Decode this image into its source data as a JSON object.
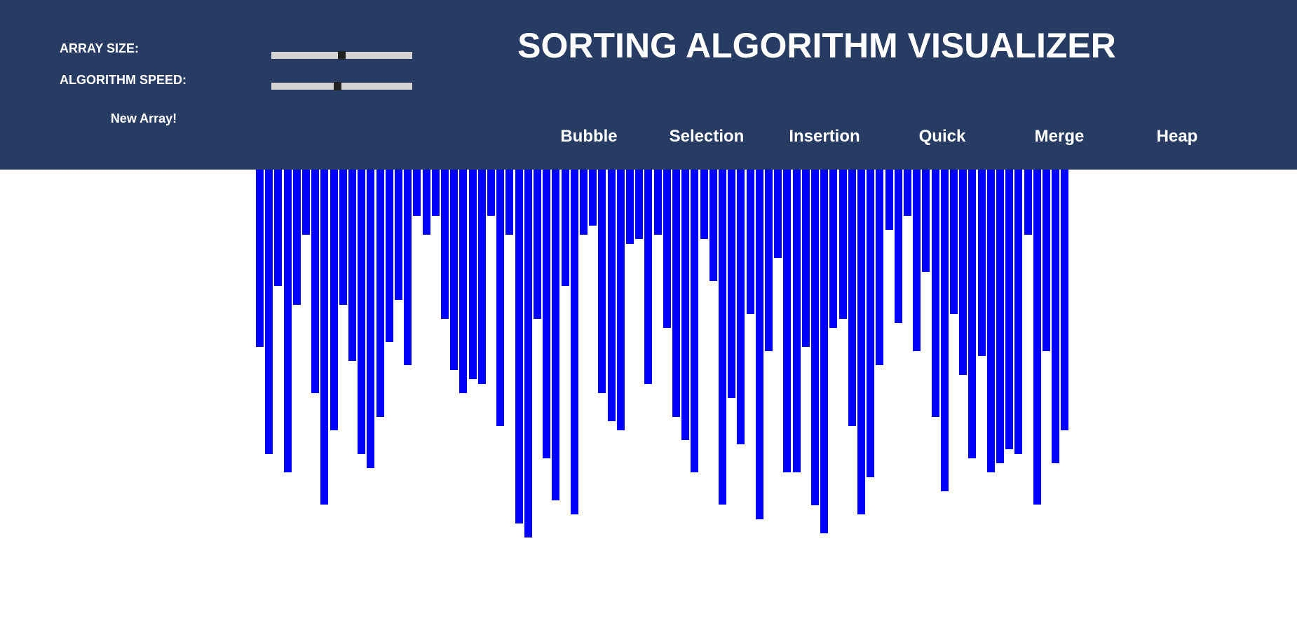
{
  "controls": {
    "array_size_label": "ARRAY SIZE:",
    "speed_label": "ALGORITHM SPEED:",
    "array_size_value": 0.5,
    "speed_value": 0.47,
    "new_array_label": "New Array!"
  },
  "title": "SORTING ALGORITHM VISUALIZER",
  "algorithms": [
    "Bubble",
    "Selection",
    "Insertion",
    "Quick",
    "Merge",
    "Heap"
  ],
  "colors": {
    "header": "#283c63",
    "bar": "#0000ff",
    "text": "#ffffff",
    "slider_track": "#d3d3d3",
    "slider_thumb": "#222222"
  },
  "chart_data": {
    "type": "bar",
    "orientation": "downward",
    "values": [
      253,
      406,
      166,
      432,
      193,
      93,
      319,
      478,
      372,
      193,
      273,
      406,
      426,
      353,
      246,
      186,
      279,
      66,
      93,
      66,
      213,
      286,
      319,
      299,
      306,
      66,
      366,
      93,
      505,
      525,
      213,
      412,
      472,
      166,
      492,
      93,
      80,
      319,
      359,
      372,
      106,
      99,
      306,
      93,
      226,
      353,
      386,
      432,
      99,
      159,
      478,
      326,
      392,
      206,
      499,
      259,
      126,
      432,
      432,
      253,
      479,
      519,
      226,
      213,
      366,
      492,
      439,
      279,
      86,
      219,
      66,
      259,
      146,
      353,
      459,
      206,
      293,
      412,
      266,
      432,
      419,
      399,
      406,
      93,
      478,
      259,
      419,
      372
    ]
  }
}
